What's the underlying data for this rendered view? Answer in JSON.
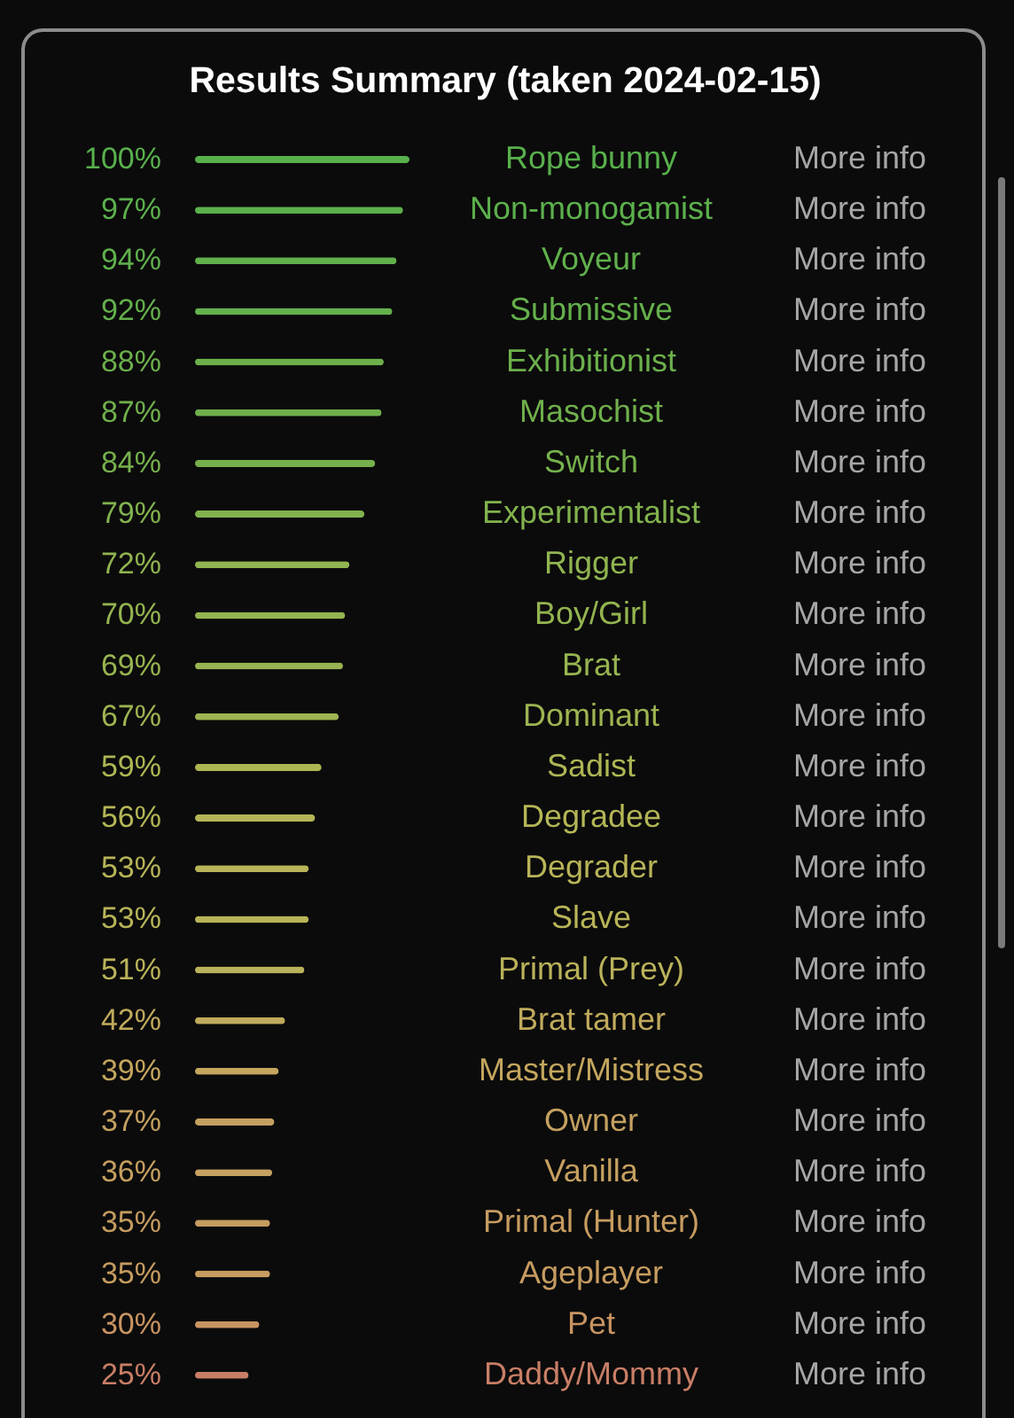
{
  "chart_data": {
    "type": "bar",
    "orientation": "horizontal",
    "title": "Results Summary (taken 2024-02-15)",
    "categories": [
      "Rope bunny",
      "Non-monogamist",
      "Voyeur",
      "Submissive",
      "Exhibitionist",
      "Masochist",
      "Switch",
      "Experimentalist",
      "Rigger",
      "Boy/Girl",
      "Brat",
      "Dominant",
      "Sadist",
      "Degradee",
      "Degrader",
      "Slave",
      "Primal (Prey)",
      "Brat tamer",
      "Master/Mistress",
      "Owner",
      "Vanilla",
      "Primal (Hunter)",
      "Ageplayer",
      "Pet",
      "Daddy/Mommy"
    ],
    "values": [
      100,
      97,
      94,
      92,
      88,
      87,
      84,
      79,
      72,
      70,
      69,
      67,
      59,
      56,
      53,
      53,
      51,
      42,
      39,
      37,
      36,
      35,
      35,
      30,
      25
    ],
    "value_labels": [
      "100%",
      "97%",
      "94%",
      "92%",
      "88%",
      "87%",
      "84%",
      "79%",
      "72%",
      "70%",
      "69%",
      "67%",
      "59%",
      "56%",
      "53%",
      "53%",
      "51%",
      "42%",
      "39%",
      "37%",
      "36%",
      "35%",
      "35%",
      "30%",
      "25%"
    ],
    "colors": [
      "#58b04c",
      "#5cb04c",
      "#60b04c",
      "#64b04c",
      "#6cb04c",
      "#70b04c",
      "#76b04c",
      "#82b24e",
      "#90b450",
      "#94b450",
      "#98b450",
      "#9eb452",
      "#aeb654",
      "#b4b656",
      "#b8b458",
      "#b8b458",
      "#bab25a",
      "#c0aa5c",
      "#c4a65e",
      "#c4a060",
      "#c6a060",
      "#c69c60",
      "#c69c60",
      "#c89462",
      "#c87e66"
    ],
    "annotations": [
      "More info",
      "More info",
      "More info",
      "More info",
      "More info",
      "More info",
      "More info",
      "More info",
      "More info",
      "More info",
      "More info",
      "More info",
      "More info",
      "More info",
      "More info",
      "More info",
      "More info",
      "More info",
      "More info",
      "More info",
      "More info",
      "More info",
      "More info",
      "More info",
      "More info"
    ]
  }
}
